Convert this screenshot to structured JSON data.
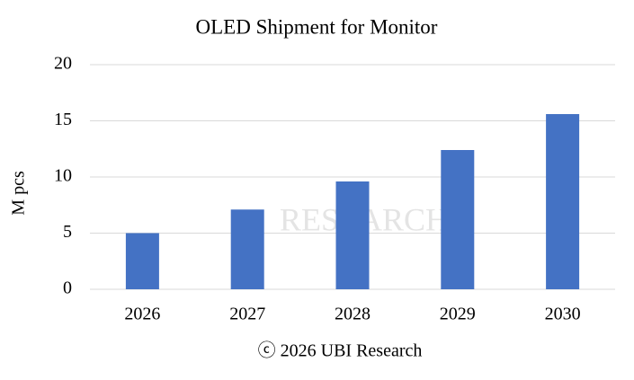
{
  "chart_data": {
    "type": "bar",
    "title": "OLED Shipment for Monitor",
    "y_label": "M pcs",
    "footer": "ⓒ 2026 UBI Research",
    "watermark": "RESEARCH",
    "categories": [
      "2026",
      "2027",
      "2028",
      "2029",
      "2030"
    ],
    "values": [
      5,
      7.1,
      9.6,
      12.4,
      15.6
    ],
    "color": "#4472c4",
    "ylim": [
      0,
      20
    ],
    "yticks": [
      0,
      5,
      10,
      15,
      20
    ],
    "grid": true
  }
}
